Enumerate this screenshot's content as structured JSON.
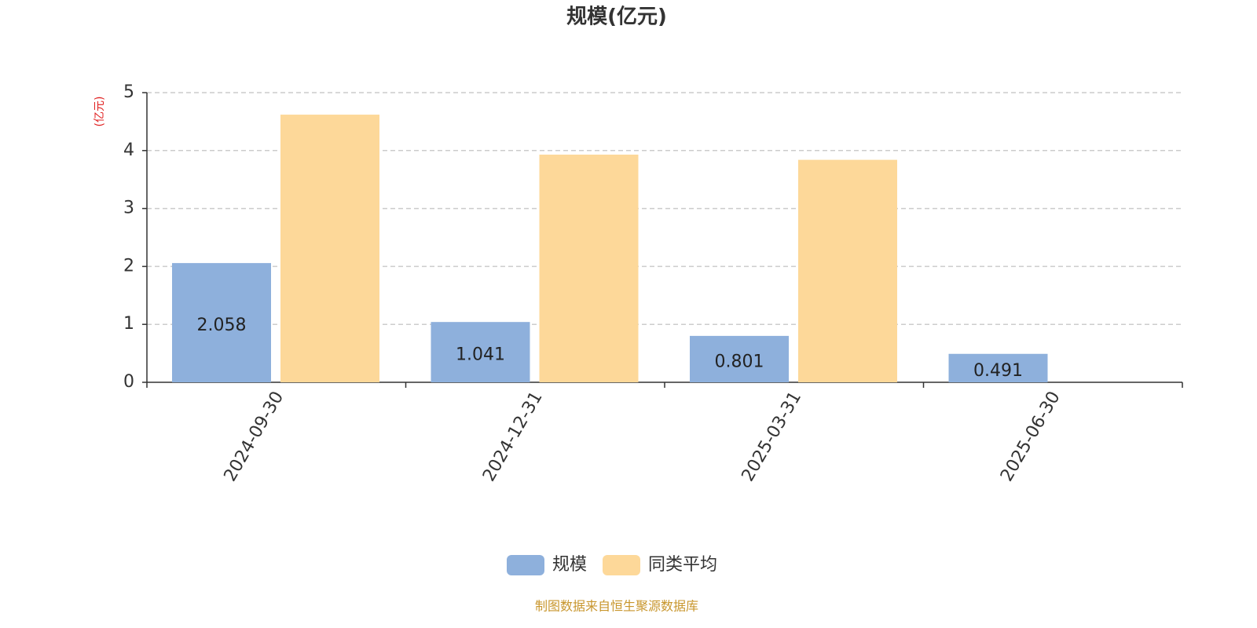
{
  "chart_data": {
    "type": "bar",
    "title": "规模(亿元)",
    "y_axis_label": "(亿元)",
    "categories": [
      "2024-09-30",
      "2024-12-31",
      "2025-03-31",
      "2025-06-30"
    ],
    "series": [
      {
        "name": "规模",
        "color": "#8eb0dc",
        "values": [
          2.058,
          1.041,
          0.801,
          0.491
        ],
        "show_labels": true
      },
      {
        "name": "同类平均",
        "color": "#fdd899",
        "values": [
          4.62,
          3.93,
          3.84,
          null
        ],
        "show_labels": false
      }
    ],
    "ylim": [
      0,
      5
    ],
    "yticks": [
      0,
      1,
      2,
      3,
      4,
      5
    ],
    "grid": true,
    "footer": "制图数据来自恒生聚源数据库"
  }
}
